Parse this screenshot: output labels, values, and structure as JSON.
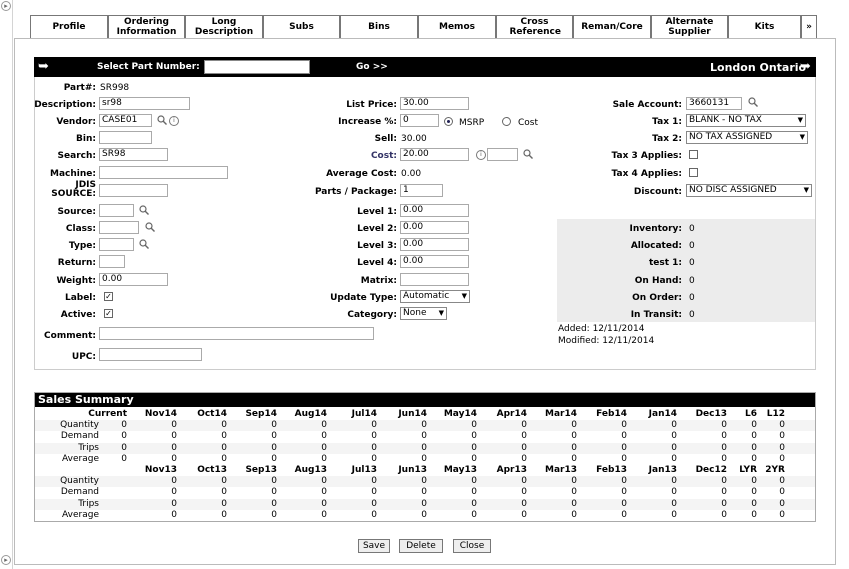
{
  "tabs": [
    {
      "label": "Profile"
    },
    {
      "label": "Ordering Information"
    },
    {
      "label": "Long Description"
    },
    {
      "label": "Subs"
    },
    {
      "label": "Bins"
    },
    {
      "label": "Memos"
    },
    {
      "label": "Cross Reference"
    },
    {
      "label": "Reman/Core"
    },
    {
      "label": "Alternate Supplier"
    },
    {
      "label": "Kits"
    },
    {
      "label": "»"
    }
  ],
  "header": {
    "select_label": "Select Part Number:",
    "go_label": "Go >>",
    "location": "London Ontario",
    "part_value": ""
  },
  "left": {
    "part_label": "Part#:",
    "part_value": "SR998",
    "description_label": "Description:",
    "description_value": "sr98",
    "vendor_label": "Vendor:",
    "vendor_value": "CASE01",
    "bin_label": "Bin:",
    "search_label": "Search:",
    "search_value": "SR98",
    "machine_label": "Machine:",
    "jdis_label": "JDIS SOURCE:",
    "source_label": "Source:",
    "class_label": "Class:",
    "type_label": "Type:",
    "return_label": "Return:",
    "weight_label": "Weight:",
    "weight_value": "0.00",
    "label_label": "Label:",
    "label_checked": "✓",
    "active_label": "Active:",
    "active_checked": "✓",
    "comment_label": "Comment:",
    "upc_label": "UPC:"
  },
  "middle": {
    "list_price_label": "List Price:",
    "list_price_value": "30.00",
    "increase_label": "Increase %:",
    "increase_value": "0",
    "msrp_label": "MSRP",
    "cost_radio_label": "Cost",
    "sell_label": "Sell:",
    "sell_value": "30.00",
    "cost_label": "Cost:",
    "cost_value": "20.00",
    "avg_cost_label": "Average Cost:",
    "avg_cost_value": "0.00",
    "parts_pkg_label": "Parts / Package:",
    "parts_pkg_value": "1",
    "level1_label": "Level 1:",
    "level1_value": "0.00",
    "level2_label": "Level 2:",
    "level2_value": "0.00",
    "level3_label": "Level 3:",
    "level3_value": "0.00",
    "level4_label": "Level 4:",
    "level4_value": "0.00",
    "matrix_label": "Matrix:",
    "update_type_label": "Update Type:",
    "update_type_value": "Automatic",
    "category_label": "Category:",
    "category_value": "None"
  },
  "right": {
    "sale_account_label": "Sale Account:",
    "sale_account_value": "3660131",
    "tax1_label": "Tax 1:",
    "tax1_value": "BLANK - NO TAX",
    "tax2_label": "Tax 2:",
    "tax2_value": "NO TAX ASSIGNED",
    "tax3_label": "Tax 3 Applies:",
    "tax4_label": "Tax 4 Applies:",
    "discount_label": "Discount:",
    "discount_value": "NO DISC ASSIGNED"
  },
  "inventory": [
    {
      "label": "Inventory:",
      "value": "0"
    },
    {
      "label": "Allocated:",
      "value": "0"
    },
    {
      "label": "test 1:",
      "value": "0"
    },
    {
      "label": "On Hand:",
      "value": "0"
    },
    {
      "label": "On Order:",
      "value": "0"
    },
    {
      "label": "In Transit:",
      "value": "0"
    }
  ],
  "dates": {
    "added": "Added: 12/11/2014",
    "modified": "Modified: 12/11/2014"
  },
  "sales_summary": {
    "title": "Sales Summary",
    "header1": [
      "Current",
      "Nov14",
      "Oct14",
      "Sep14",
      "Aug14",
      "Jul14",
      "Jun14",
      "May14",
      "Apr14",
      "Mar14",
      "Feb14",
      "Jan14",
      "Dec13",
      "L6",
      "L12"
    ],
    "rows1": [
      {
        "label": "Quantity",
        "values": [
          "0",
          "0",
          "0",
          "0",
          "0",
          "0",
          "0",
          "0",
          "0",
          "0",
          "0",
          "0",
          "0",
          "0",
          "0"
        ]
      },
      {
        "label": "Demand",
        "values": [
          "0",
          "0",
          "0",
          "0",
          "0",
          "0",
          "0",
          "0",
          "0",
          "0",
          "0",
          "0",
          "0",
          "0",
          "0"
        ]
      },
      {
        "label": "Trips",
        "values": [
          "0",
          "0",
          "0",
          "0",
          "0",
          "0",
          "0",
          "0",
          "0",
          "0",
          "0",
          "0",
          "0",
          "0",
          "0"
        ]
      },
      {
        "label": "Average",
        "values": [
          "0",
          "0",
          "0",
          "0",
          "0",
          "0",
          "0",
          "0",
          "0",
          "0",
          "0",
          "0",
          "0",
          "0",
          "0"
        ]
      }
    ],
    "header2": [
      "Nov13",
      "Oct13",
      "Sep13",
      "Aug13",
      "Jul13",
      "Jun13",
      "May13",
      "Apr13",
      "Mar13",
      "Feb13",
      "Jan13",
      "Dec12",
      "LYR",
      "2YR"
    ],
    "rows2": [
      {
        "label": "Quantity",
        "values": [
          "0",
          "0",
          "0",
          "0",
          "0",
          "0",
          "0",
          "0",
          "0",
          "0",
          "0",
          "0",
          "0",
          "0"
        ]
      },
      {
        "label": "Demand",
        "values": [
          "0",
          "0",
          "0",
          "0",
          "0",
          "0",
          "0",
          "0",
          "0",
          "0",
          "0",
          "0",
          "0",
          "0"
        ]
      },
      {
        "label": "Trips",
        "values": [
          "0",
          "0",
          "0",
          "0",
          "0",
          "0",
          "0",
          "0",
          "0",
          "0",
          "0",
          "0",
          "0",
          "0"
        ]
      },
      {
        "label": "Average",
        "values": [
          "0",
          "0",
          "0",
          "0",
          "0",
          "0",
          "0",
          "0",
          "0",
          "0",
          "0",
          "0",
          "0",
          "0"
        ]
      }
    ]
  },
  "buttons": {
    "save": "Save",
    "delete": "Delete",
    "close": "Close"
  }
}
